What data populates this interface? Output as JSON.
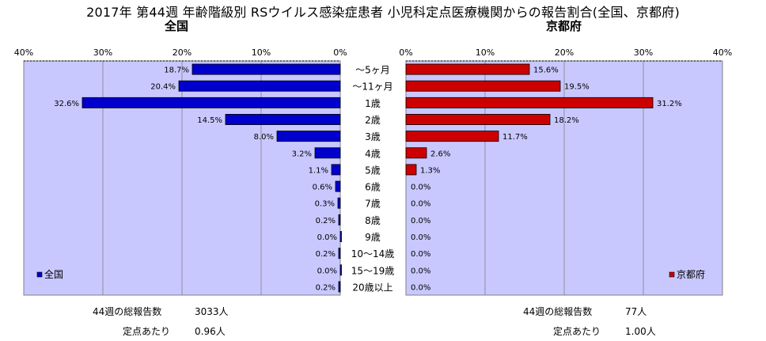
{
  "header": {
    "title": "2017年 第44週 年齢階級別 RSウイルス感染症患者 小児科定点医療機関からの報告割合(全国、京都府)",
    "left_subtitle": "全国",
    "right_subtitle": "京都府"
  },
  "chart_data": {
    "type": "bar",
    "orientation": "horizontal-pyramid",
    "categories": [
      "～5ヶ月",
      "～11ヶ月",
      "1歳",
      "2歳",
      "3歳",
      "4歳",
      "5歳",
      "6歳",
      "7歳",
      "8歳",
      "9歳",
      "10～14歳",
      "15～19歳",
      "20歳以上"
    ],
    "series": [
      {
        "name": "全国",
        "color": "#0000cc",
        "values": [
          18.7,
          20.4,
          32.6,
          14.5,
          8.0,
          3.2,
          1.1,
          0.6,
          0.3,
          0.2,
          0.0,
          0.2,
          0.0,
          0.2
        ],
        "labels": [
          "18.7%",
          "20.4%",
          "32.6%",
          "14.5%",
          "8.0%",
          "3.2%",
          "1.1%",
          "0.6%",
          "0.3%",
          "0.2%",
          "0.0%",
          "0.2%",
          "0.0%",
          "0.2%"
        ]
      },
      {
        "name": "京都府",
        "color": "#cc0000",
        "values": [
          15.6,
          19.5,
          31.2,
          18.2,
          11.7,
          2.6,
          1.3,
          0.0,
          0.0,
          0.0,
          0.0,
          0.0,
          0.0,
          0.0
        ],
        "labels": [
          "15.6%",
          "19.5%",
          "31.2%",
          "18.2%",
          "11.7%",
          "2.6%",
          "1.3%",
          "0.0%",
          "0.0%",
          "0.0%",
          "0.0%",
          "0.0%",
          "0.0%",
          "0.0%"
        ]
      }
    ],
    "xlim": [
      0,
      40
    ],
    "left_ticks": [
      "40%",
      "30%",
      "20%",
      "10%",
      "0%"
    ],
    "right_ticks": [
      "0%",
      "10%",
      "20%",
      "30%",
      "40%"
    ],
    "plot_background": "#c8c8ff",
    "grid": true,
    "legend": {
      "left": "全国",
      "right": "京都府",
      "placement": "bottom-outer"
    }
  },
  "footer": {
    "left_total_label": "44週の総報告数",
    "left_total_value": "3033人",
    "left_per_label": "定点あたり",
    "left_per_value": "0.96人",
    "right_total_label": "44週の総報告数",
    "right_total_value": "77人",
    "right_per_label": "定点あたり",
    "right_per_value": "1.00人"
  }
}
